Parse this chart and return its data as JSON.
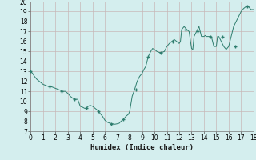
{
  "x": [
    0,
    0.15,
    0.3,
    0.5,
    0.7,
    0.9,
    1.0,
    1.2,
    1.4,
    1.6,
    1.8,
    2.0,
    2.2,
    2.4,
    2.6,
    2.8,
    3.0,
    3.2,
    3.4,
    3.6,
    3.8,
    4.0,
    4.2,
    4.35,
    4.5,
    4.65,
    4.8,
    5.0,
    5.2,
    5.4,
    5.6,
    5.8,
    6.0,
    6.2,
    6.4,
    6.6,
    6.8,
    7.0,
    7.15,
    7.3,
    7.5,
    7.7,
    7.9,
    8.0,
    8.2,
    8.4,
    8.6,
    8.8,
    9.0,
    9.15,
    9.3,
    9.5,
    9.7,
    9.85,
    10.0,
    10.2,
    10.4,
    10.6,
    10.8,
    11.0,
    11.2,
    11.4,
    11.6,
    11.8,
    12.0,
    12.1,
    12.2,
    12.4,
    12.6,
    12.8,
    13.0,
    13.1,
    13.2,
    13.4,
    13.6,
    13.8,
    14.0,
    14.1,
    14.2,
    14.4,
    14.6,
    14.8,
    15.0,
    15.1,
    15.2,
    15.4,
    15.6,
    15.8,
    16.0,
    16.2,
    16.4,
    16.6,
    16.8,
    17.0,
    17.2,
    17.4,
    17.6,
    17.8,
    18.0
  ],
  "y": [
    13.0,
    12.8,
    12.5,
    12.2,
    12.0,
    11.8,
    11.7,
    11.6,
    11.5,
    11.5,
    11.4,
    11.3,
    11.2,
    11.1,
    11.0,
    11.0,
    10.8,
    10.5,
    10.3,
    10.2,
    10.2,
    9.5,
    9.4,
    9.3,
    9.3,
    9.5,
    9.6,
    9.5,
    9.3,
    9.1,
    8.8,
    8.5,
    8.1,
    7.9,
    7.8,
    7.75,
    7.7,
    7.75,
    7.8,
    8.0,
    8.2,
    8.5,
    8.7,
    9.0,
    10.5,
    11.2,
    12.0,
    12.5,
    12.8,
    13.2,
    13.5,
    14.5,
    15.0,
    15.3,
    15.2,
    15.0,
    14.9,
    14.9,
    15.0,
    15.5,
    15.8,
    16.0,
    16.2,
    16.0,
    15.8,
    16.0,
    17.2,
    17.5,
    17.2,
    17.0,
    15.3,
    15.2,
    16.5,
    17.0,
    17.5,
    16.5,
    16.5,
    16.6,
    16.5,
    16.5,
    16.5,
    15.5,
    15.5,
    16.5,
    16.5,
    16.0,
    15.5,
    15.2,
    15.5,
    16.5,
    17.5,
    18.0,
    18.5,
    19.0,
    19.3,
    19.5,
    19.5,
    19.2,
    19.2
  ],
  "marker_x": [
    0,
    1.5,
    2.5,
    3.5,
    4.5,
    5.5,
    6.5,
    7.5,
    8.5,
    9.5,
    10.5,
    11.5,
    12.5,
    13.5,
    14.5,
    15.5,
    16.5,
    17.5
  ],
  "marker_y": [
    13.0,
    11.5,
    11.0,
    10.2,
    9.3,
    9.0,
    7.75,
    8.2,
    11.2,
    14.5,
    14.9,
    16.0,
    17.2,
    17.0,
    16.5,
    16.5,
    15.5,
    19.5
  ],
  "line_color": "#2e7d6e",
  "marker_color": "#2e7d6e",
  "bg_color": "#d4eeee",
  "grid_color": "#c8b8b8",
  "xlabel": "Humidex (Indice chaleur)",
  "xlim": [
    0,
    18
  ],
  "ylim": [
    7,
    20
  ],
  "xticks": [
    0,
    1,
    2,
    3,
    4,
    5,
    6,
    7,
    8,
    9,
    10,
    11,
    12,
    13,
    14,
    15,
    16,
    17,
    18
  ],
  "yticks": [
    7,
    8,
    9,
    10,
    11,
    12,
    13,
    14,
    15,
    16,
    17,
    18,
    19,
    20
  ],
  "tick_fontsize": 5.5,
  "label_fontsize": 6.5
}
